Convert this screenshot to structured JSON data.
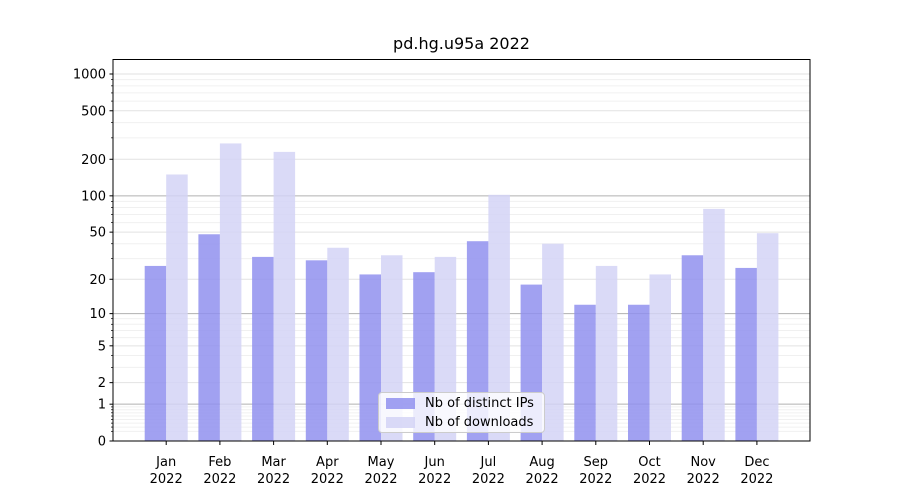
{
  "chart_data": {
    "type": "bar",
    "title": "pd.hg.u95a 2022",
    "categories": [
      "Jan",
      "Feb",
      "Mar",
      "Apr",
      "May",
      "Jun",
      "Jul",
      "Aug",
      "Sep",
      "Oct",
      "Nov",
      "Dec"
    ],
    "xtick_year": "2022",
    "series": [
      {
        "name": "Nb of distinct IPs",
        "color": "#9191ee",
        "values": [
          26,
          48,
          31,
          29,
          22,
          23,
          42,
          18,
          12,
          12,
          32,
          25
        ]
      },
      {
        "name": "Nb of downloads",
        "color": "#d3d3f6",
        "values": [
          150,
          270,
          230,
          37,
          32,
          31,
          102,
          40,
          26,
          22,
          78,
          49
        ]
      }
    ],
    "yticks": [
      0,
      1,
      2,
      5,
      10,
      20,
      50,
      100,
      200,
      500,
      1000
    ],
    "yscale": "log1p",
    "ylim": [
      0,
      1320
    ],
    "grid": true,
    "legend_position": "lower center",
    "colors": {
      "grid_emphasis": "#b0b0b0",
      "grid_major": "#e2e2e2",
      "grid_minor": "#f0f0f0",
      "axis": "#000000",
      "tick_text": "#000000",
      "legend_border": "#cccccc",
      "background": "#ffffff"
    }
  }
}
